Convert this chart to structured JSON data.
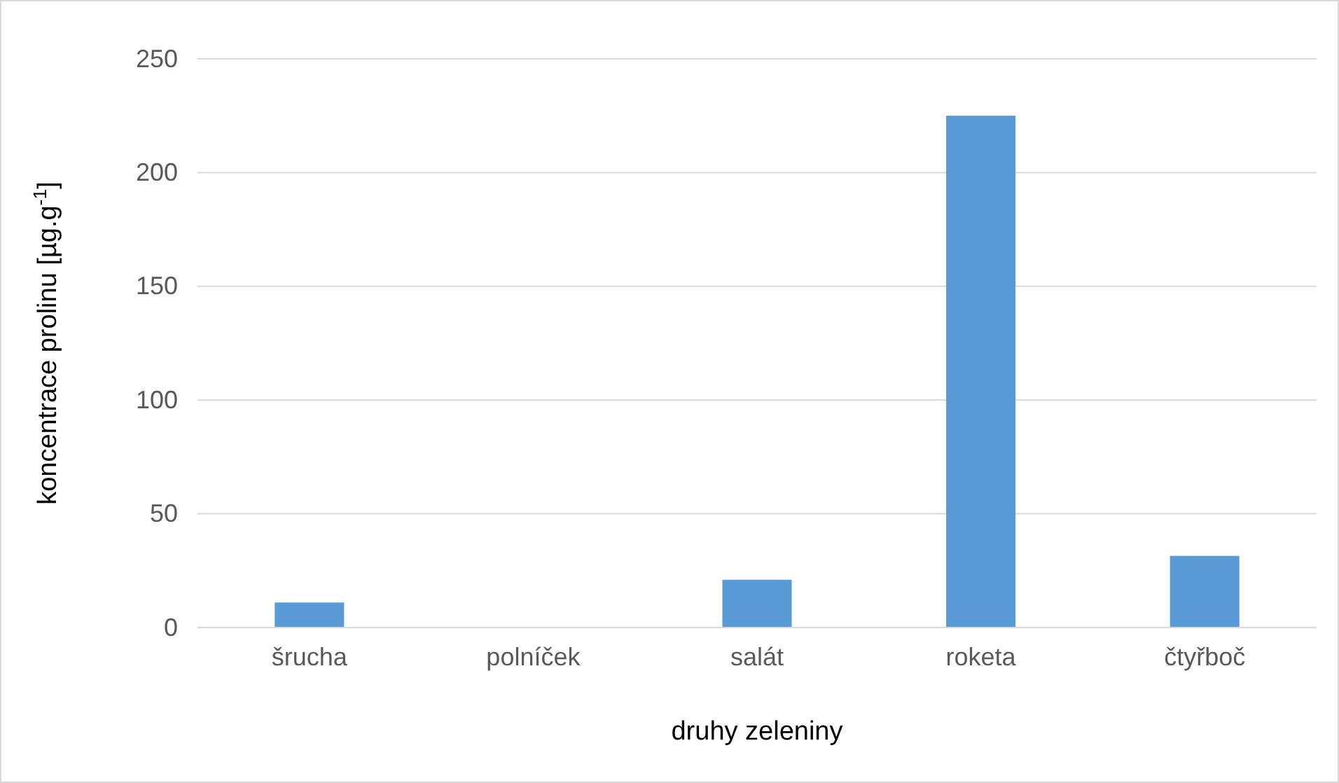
{
  "chart_data": {
    "type": "bar",
    "xlabel": "druhy zeleniny",
    "ylabel": "koncentrace prolinu [µg.g$^{-1}$]",
    "categories": [
      "šrucha",
      "polníček",
      "salát",
      "roketa",
      "čtyřboč"
    ],
    "values": [
      11,
      0,
      21,
      225,
      31.5
    ],
    "color": "#5b9bd5",
    "ylim": [
      0,
      250
    ],
    "yticks": [
      0,
      50,
      100,
      150,
      200,
      250
    ],
    "grid": "y"
  }
}
